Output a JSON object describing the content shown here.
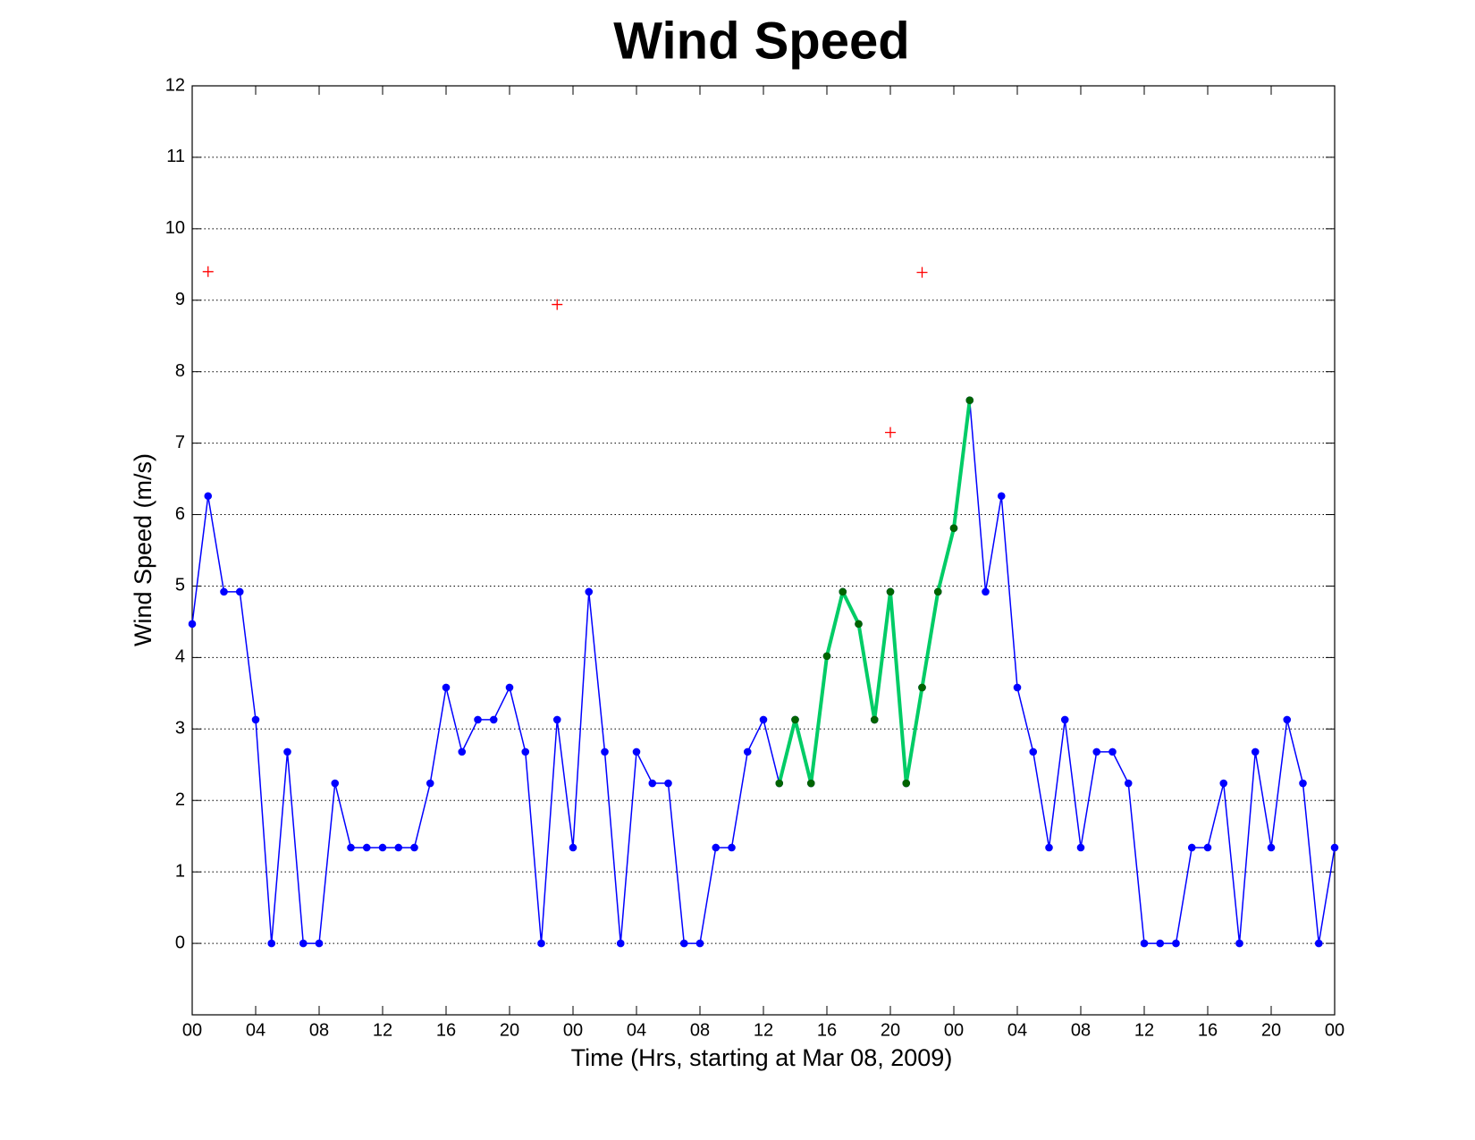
{
  "chart_data": {
    "type": "line",
    "title": "Wind Speed",
    "xlabel": "Time (Hrs, starting at Mar 08, 2009)",
    "ylabel": "Wind Speed (m/s)",
    "x": [
      0,
      1,
      2,
      3,
      4,
      5,
      6,
      7,
      8,
      9,
      10,
      11,
      12,
      13,
      14,
      15,
      16,
      17,
      18,
      19,
      20,
      21,
      22,
      23,
      24,
      25,
      26,
      27,
      28,
      29,
      30,
      31,
      32,
      33,
      34,
      35,
      36,
      37,
      38,
      39,
      40,
      41,
      42,
      43,
      44,
      45,
      46,
      47,
      48,
      49,
      50,
      51,
      52,
      53,
      54,
      55,
      56,
      57,
      58,
      59,
      60,
      61,
      62,
      63,
      64,
      65,
      66,
      67,
      68,
      69,
      70,
      71,
      72
    ],
    "series": [
      {
        "color": "#0000ff",
        "marker": "o",
        "line_width": 1.5,
        "values": [
          4.47,
          6.26,
          4.92,
          4.92,
          3.13,
          0,
          2.68,
          0,
          0,
          2.24,
          1.34,
          1.34,
          1.34,
          1.34,
          1.34,
          2.24,
          3.58,
          2.68,
          3.13,
          3.13,
          3.58,
          2.68,
          0,
          3.13,
          1.34,
          4.92,
          2.68,
          0,
          2.68,
          2.24,
          2.24,
          0,
          0,
          1.34,
          1.34,
          2.68,
          3.13,
          2.24,
          3.13,
          2.24,
          4.02,
          4.92,
          4.47,
          3.13,
          4.92,
          2.24,
          3.58,
          4.92,
          5.81,
          7.6,
          4.92,
          6.26,
          3.58,
          2.68,
          1.34,
          3.13,
          1.34,
          2.68,
          2.68,
          2.24,
          0,
          0,
          0,
          1.34,
          1.34,
          2.24,
          0,
          2.68,
          1.34,
          3.13,
          2.24,
          0,
          1.34
        ]
      },
      {
        "color": "#00cc66",
        "marker_color": "#006400",
        "marker": "o",
        "line_width": 4,
        "values": [
          null,
          null,
          null,
          null,
          null,
          null,
          null,
          null,
          null,
          null,
          null,
          null,
          null,
          null,
          null,
          null,
          null,
          null,
          null,
          null,
          null,
          null,
          null,
          null,
          null,
          null,
          null,
          null,
          null,
          null,
          null,
          null,
          null,
          null,
          null,
          null,
          null,
          2.24,
          3.13,
          2.24,
          4.02,
          4.92,
          4.47,
          3.13,
          4.92,
          2.24,
          3.58,
          4.92,
          5.81,
          7.6,
          null,
          null,
          null,
          null,
          null,
          null,
          null,
          null,
          null,
          null,
          null,
          null,
          null,
          null,
          null,
          null,
          null,
          null,
          null,
          null,
          null,
          null,
          null
        ]
      },
      {
        "color": "#ff0000",
        "marker": "+",
        "line_width": 0,
        "values": [
          null,
          9.4,
          null,
          null,
          null,
          null,
          null,
          null,
          null,
          null,
          null,
          null,
          null,
          null,
          null,
          null,
          null,
          null,
          null,
          null,
          null,
          null,
          null,
          8.94,
          null,
          null,
          null,
          null,
          null,
          null,
          null,
          null,
          null,
          null,
          null,
          null,
          null,
          null,
          null,
          null,
          null,
          null,
          null,
          null,
          7.15,
          null,
          9.39,
          null,
          null,
          null,
          null,
          null,
          null,
          null,
          null,
          null,
          null,
          null,
          null,
          null,
          null,
          null,
          null,
          null,
          null,
          null,
          null,
          null,
          null,
          null,
          null,
          null,
          null
        ]
      }
    ],
    "xlim": [
      0,
      72
    ],
    "xticks": [
      {
        "value": 0,
        "label": "00"
      },
      {
        "value": 4,
        "label": "04"
      },
      {
        "value": 8,
        "label": "08"
      },
      {
        "value": 12,
        "label": "12"
      },
      {
        "value": 16,
        "label": "16"
      },
      {
        "value": 20,
        "label": "20"
      },
      {
        "value": 24,
        "label": "00"
      },
      {
        "value": 28,
        "label": "04"
      },
      {
        "value": 32,
        "label": "08"
      },
      {
        "value": 36,
        "label": "12"
      },
      {
        "value": 40,
        "label": "16"
      },
      {
        "value": 44,
        "label": "20"
      },
      {
        "value": 48,
        "label": "00"
      },
      {
        "value": 52,
        "label": "04"
      },
      {
        "value": 56,
        "label": "08"
      },
      {
        "value": 60,
        "label": "12"
      },
      {
        "value": 64,
        "label": "16"
      },
      {
        "value": 68,
        "label": "20"
      },
      {
        "value": 72,
        "label": "00"
      }
    ],
    "ylim": [
      -1,
      12
    ],
    "yticks": [
      0,
      1,
      2,
      3,
      4,
      5,
      6,
      7,
      8,
      9,
      10,
      11,
      12
    ],
    "grid": true
  }
}
